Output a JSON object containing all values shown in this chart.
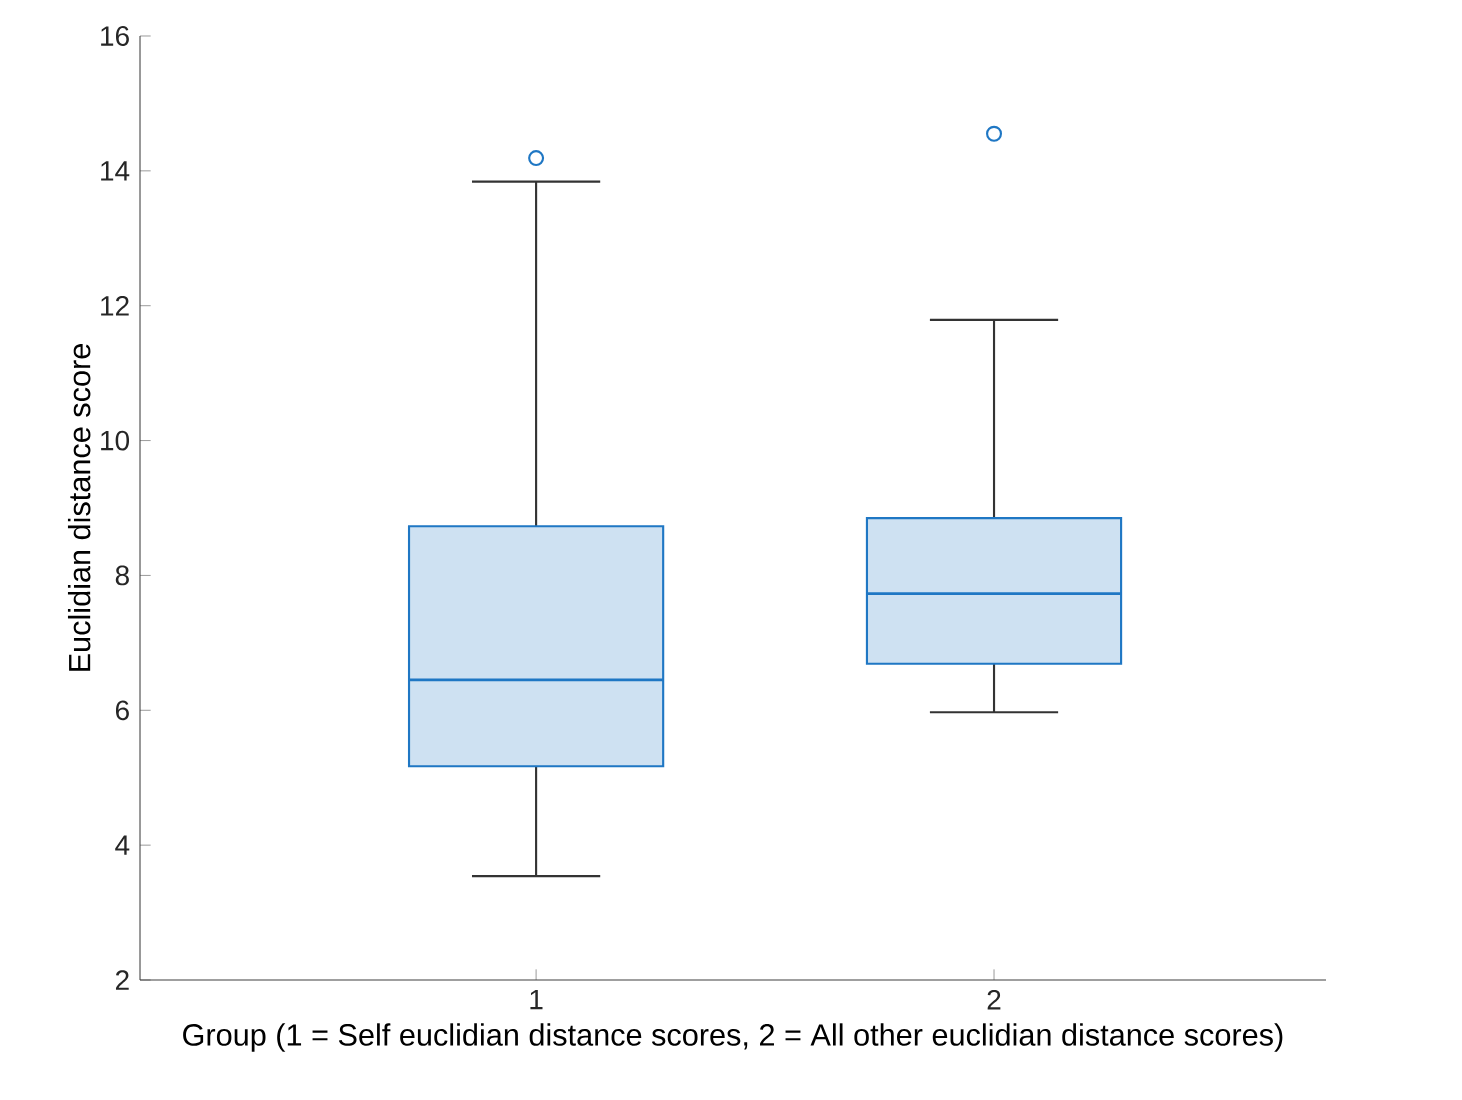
{
  "chart_data": {
    "type": "box",
    "xlabel": "Group (1 = Self euclidian distance scores, 2 = All other euclidian distance scores)",
    "ylabel": "Euclidian distance score",
    "categories": [
      "1",
      "2"
    ],
    "ylim": [
      2,
      16
    ],
    "yticks": [
      2,
      4,
      6,
      8,
      10,
      12,
      14,
      16
    ],
    "grid": false,
    "color": "#1f77c4",
    "boxes": [
      {
        "low": 3.54,
        "q1": 5.17,
        "median": 6.45,
        "q3": 8.73,
        "high": 13.84,
        "outliers": [
          14.19
        ]
      },
      {
        "low": 5.97,
        "q1": 6.69,
        "median": 7.73,
        "q3": 8.85,
        "high": 11.79,
        "outliers": [
          14.55
        ]
      }
    ]
  }
}
